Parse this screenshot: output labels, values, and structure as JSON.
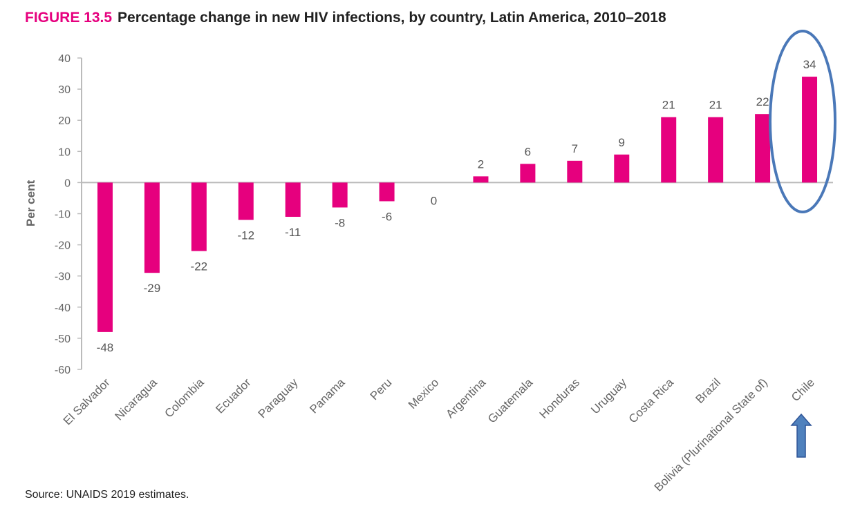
{
  "header": {
    "figure_label": "FIGURE 13.5",
    "title_text": "Percentage change in new HIV infections, by country, Latin America, 2010–2018"
  },
  "footer": {
    "source": "Source: UNAIDS 2019 estimates."
  },
  "colors": {
    "bar": "#e6007e",
    "axis": "#bbbbbb",
    "highlight": "#4a78b8",
    "arrow_fill": "#4f81bd",
    "arrow_stroke": "#2f5597"
  },
  "chart_data": {
    "type": "bar",
    "title": "Percentage change in new HIV infections, by country, Latin America, 2010–2018",
    "ylabel": "Per cent",
    "xlabel": "",
    "ylim": [
      -60,
      40
    ],
    "yticks": [
      40,
      30,
      20,
      10,
      0,
      -10,
      -20,
      -30,
      -40,
      -50,
      -60
    ],
    "grid": false,
    "categories": [
      "El Salvador",
      "Nicaragua",
      "Colombia",
      "Ecuador",
      "Paraguay",
      "Panama",
      "Peru",
      "Mexico",
      "Argentina",
      "Guatemala",
      "Honduras",
      "Uruguay",
      "Costa Rica",
      "Brazil",
      "Bolivia (Plurinational State of)",
      "Chile"
    ],
    "values": [
      -48,
      -29,
      -22,
      -12,
      -11,
      -8,
      -6,
      0,
      2,
      6,
      7,
      9,
      21,
      21,
      22,
      34
    ],
    "highlighted_category": "Chile",
    "annotations": [
      "ellipse around Chile bar",
      "upward arrow under Chile label"
    ]
  }
}
